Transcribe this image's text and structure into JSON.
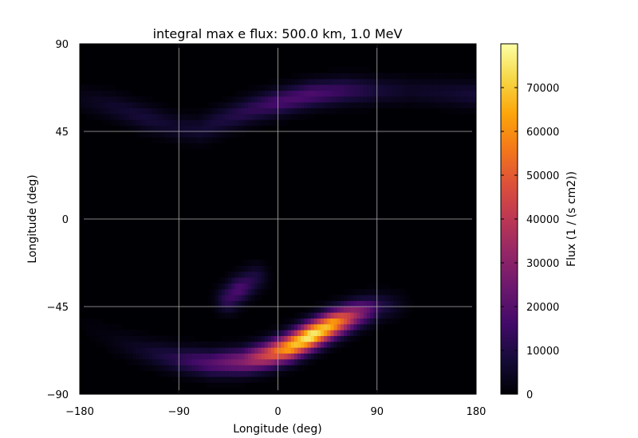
{
  "chart_data": {
    "type": "heatmap",
    "title": "integral max e flux: 500.0 km, 1.0 MeV",
    "xlabel": "Longitude (deg)",
    "ylabel": "Longitude (deg)",
    "xlim": [
      -180,
      180
    ],
    "ylim": [
      -90,
      90
    ],
    "x_ticks": [
      -180,
      -90,
      0,
      90,
      180
    ],
    "x_tick_labels": [
      "−180",
      "−90",
      "0",
      "90",
      "180"
    ],
    "y_ticks": [
      90,
      45,
      0,
      -45,
      -90
    ],
    "y_tick_labels": [
      "90",
      "45",
      "0",
      "−45",
      "−90"
    ],
    "grid": true,
    "colormap": "inferno",
    "colorbar": {
      "label": "Flux (1 / (s cm2))",
      "range": [
        0,
        80000
      ],
      "ticks": [
        0,
        10000,
        20000,
        30000,
        40000,
        50000,
        60000,
        70000
      ],
      "tick_labels": [
        "0",
        "10000",
        "20000",
        "30000",
        "40000",
        "50000",
        "60000",
        "70000"
      ]
    },
    "features": [
      {
        "name": "northern-belt",
        "path": [
          [
            -180,
            62
          ],
          [
            -150,
            58
          ],
          [
            -120,
            52
          ],
          [
            -90,
            47
          ],
          [
            -70,
            46
          ],
          [
            -50,
            51
          ],
          [
            -20,
            57
          ],
          [
            0,
            60
          ],
          [
            30,
            64
          ],
          [
            60,
            66
          ],
          [
            90,
            66
          ],
          [
            120,
            66
          ],
          [
            150,
            65
          ],
          [
            180,
            64
          ]
        ],
        "peak_flux": [
          3000,
          6000,
          8000,
          6000,
          7000,
          9000,
          13000,
          17000,
          18000,
          14000,
          8000,
          5000,
          6000,
          8000
        ]
      },
      {
        "name": "southern-belt",
        "path": [
          [
            -180,
            -52
          ],
          [
            -150,
            -62
          ],
          [
            -120,
            -68
          ],
          [
            -90,
            -72
          ],
          [
            -60,
            -74
          ],
          [
            -30,
            -73
          ],
          [
            -10,
            -70
          ],
          [
            10,
            -66
          ],
          [
            30,
            -60
          ],
          [
            50,
            -54
          ],
          [
            70,
            -49
          ],
          [
            90,
            -45
          ],
          [
            110,
            -44
          ]
        ],
        "peak_flux": [
          500,
          2000,
          6000,
          12000,
          20000,
          30000,
          45000,
          65000,
          78000,
          65000,
          35000,
          12000,
          3000
        ]
      },
      {
        "name": "mid-latitude-patch",
        "path": [
          [
            -45,
            -41
          ],
          [
            -35,
            -36
          ],
          [
            -20,
            -30
          ]
        ],
        "peak_flux": [
          14000,
          18000,
          9000
        ]
      }
    ]
  }
}
